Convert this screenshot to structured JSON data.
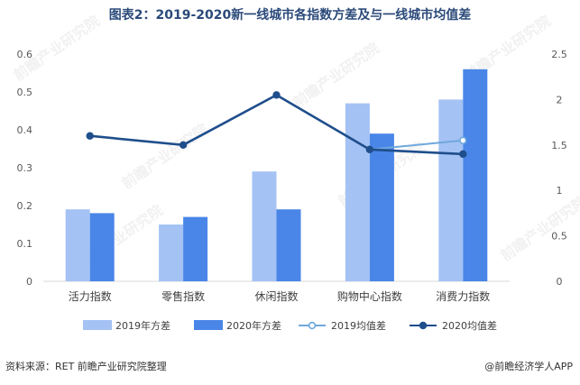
{
  "header": {
    "title": "图表2：2019-2020新一线城市各指数方差及与一线城市均值差"
  },
  "footer": {
    "source": "资料来源：RET 前瞻产业研究院整理",
    "brand": "@前瞻经济学人APP"
  },
  "watermark": {
    "text": "前瞻产业研究院"
  },
  "colors": {
    "bar2019": "#a4c2f4",
    "bar2020": "#4a86e8",
    "line2019": "#6fa8dc",
    "line2020": "#1f4e8c"
  },
  "chart_data": {
    "type": "bar",
    "title": "图表2：2019-2020新一线城市各指数方差及与一线城市均值差",
    "categories": [
      "活力指数",
      "零售指数",
      "休闲指数",
      "购物中心指数",
      "消费力指数"
    ],
    "series": [
      {
        "name": "2019年方差",
        "type": "bar",
        "axis": "left",
        "values": [
          0.19,
          0.15,
          0.29,
          0.47,
          0.48
        ]
      },
      {
        "name": "2020年方差",
        "type": "bar",
        "axis": "left",
        "values": [
          0.18,
          0.17,
          0.19,
          0.39,
          0.56
        ]
      },
      {
        "name": "2019均值差",
        "type": "line",
        "axis": "right",
        "values": [
          null,
          null,
          null,
          1.45,
          1.55
        ]
      },
      {
        "name": "2020均值差",
        "type": "line",
        "axis": "right",
        "values": [
          1.6,
          1.5,
          2.05,
          1.45,
          1.4
        ]
      }
    ],
    "y_left": {
      "ylim": [
        0,
        0.6
      ],
      "ticks": [
        "0",
        "0.1",
        "0.2",
        "0.3",
        "0.4",
        "0.5",
        "0.6"
      ]
    },
    "y_right": {
      "ylim": [
        0,
        2.5
      ],
      "ticks": [
        "0",
        "0.5",
        "1",
        "1.5",
        "2",
        "2.5"
      ]
    },
    "legend": "bottom",
    "grid": false
  }
}
